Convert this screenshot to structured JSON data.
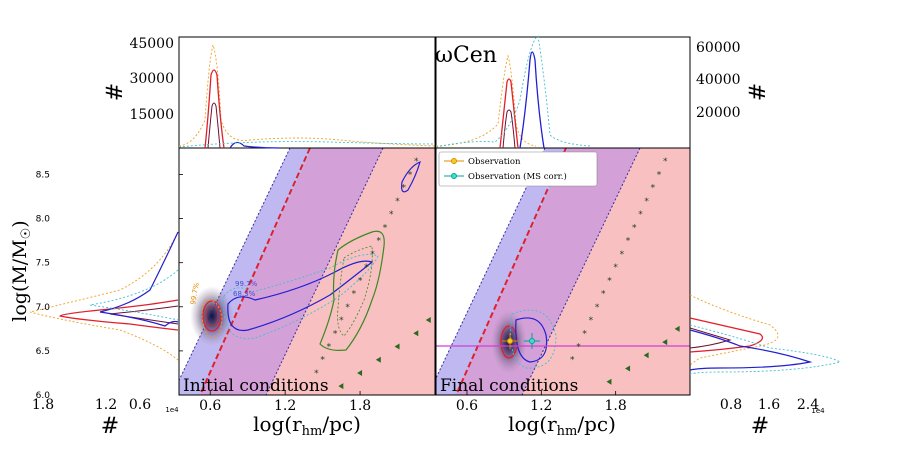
{
  "chart_data": [
    {
      "type": "scatter",
      "panel": "left",
      "annotation": "Initial conditions",
      "xlabel": "log(r_hm/pc)",
      "ylabel": "log(M/M_☉)",
      "xlim": [
        0.35,
        2.4
      ],
      "ylim": [
        6.0,
        8.8
      ],
      "xticks": [
        "0.6",
        "1.2",
        "1.8"
      ],
      "yticks": [
        "6.0",
        "6.5",
        "7.0",
        "7.5",
        "8.0",
        "8.5"
      ],
      "contour_labels": [
        "99.7%",
        "68.3%",
        "99.7%",
        "68.3%"
      ],
      "ms_limit_stars": [
        [
          1.45,
          6.25
        ],
        [
          1.5,
          6.4
        ],
        [
          1.55,
          6.55
        ],
        [
          1.6,
          6.7
        ],
        [
          1.65,
          6.85
        ],
        [
          1.7,
          7.0
        ],
        [
          1.75,
          7.15
        ],
        [
          1.8,
          7.3
        ],
        [
          1.85,
          7.45
        ],
        [
          1.9,
          7.6
        ],
        [
          1.95,
          7.75
        ],
        [
          2.0,
          7.9
        ],
        [
          2.05,
          8.05
        ],
        [
          2.1,
          8.2
        ],
        [
          2.15,
          8.35
        ],
        [
          2.2,
          8.5
        ],
        [
          2.25,
          8.65
        ]
      ],
      "triangles": [
        [
          1.65,
          6.1
        ],
        [
          1.8,
          6.25
        ],
        [
          1.95,
          6.4
        ],
        [
          2.1,
          6.55
        ],
        [
          2.25,
          6.7
        ],
        [
          2.35,
          6.85
        ]
      ]
    },
    {
      "type": "scatter",
      "panel": "right",
      "annotation": "Final conditions",
      "xlabel": "log(r_hm/pc)",
      "xlim": [
        0.35,
        2.4
      ],
      "ylim": [
        6.0,
        8.8
      ],
      "xticks": [
        "0.6",
        "1.2",
        "1.8"
      ],
      "legend": [
        "Observation",
        "Observation (MS corr.)"
      ],
      "legend_position": "top-left",
      "series": [
        {
          "name": "Observation",
          "color": "#e08a00",
          "x": [
            1.0
          ],
          "y": [
            6.6
          ]
        },
        {
          "name": "Observation (MS corr.)",
          "color": "#00a0a0",
          "x": [
            1.15
          ],
          "y": [
            6.6
          ]
        }
      ],
      "hline_y": 6.56,
      "ms_limit_stars": [
        [
          1.45,
          6.4
        ],
        [
          1.5,
          6.55
        ],
        [
          1.55,
          6.7
        ],
        [
          1.6,
          6.85
        ],
        [
          1.65,
          7.0
        ],
        [
          1.7,
          7.15
        ],
        [
          1.75,
          7.3
        ],
        [
          1.8,
          7.45
        ],
        [
          1.85,
          7.6
        ],
        [
          1.9,
          7.75
        ],
        [
          1.95,
          7.9
        ],
        [
          2.0,
          8.05
        ],
        [
          2.05,
          8.2
        ],
        [
          2.1,
          8.35
        ],
        [
          2.15,
          8.5
        ],
        [
          2.2,
          8.65
        ]
      ],
      "triangles": [
        [
          1.75,
          6.15
        ],
        [
          1.9,
          6.3
        ],
        [
          2.05,
          6.45
        ],
        [
          2.2,
          6.6
        ],
        [
          2.3,
          6.75
        ]
      ]
    }
  ],
  "title": "ωCen",
  "top_left_hist": {
    "ylabel": "#",
    "yticks": [
      "15000",
      "30000",
      "45000"
    ]
  },
  "top_right_hist": {
    "ylabel": "#",
    "yticks": [
      "20000",
      "40000",
      "60000"
    ]
  },
  "left_hist": {
    "xlabel": "#",
    "xticks": [
      "1.8",
      "1.2",
      "0.6"
    ],
    "exponent": "1e4"
  },
  "right_hist": {
    "xlabel": "#",
    "xticks": [
      "0.8",
      "1.6",
      "2.4"
    ],
    "exponent": "1e4"
  },
  "colors": {
    "red": "#e0202a",
    "blue": "#2020d0",
    "orange": "#f0a020",
    "cyan": "#40c0d0",
    "green": "#3a8a20",
    "band_blue": "#b8b8f0",
    "band_pink": "#f8c0c0",
    "band_purple": "#d0a0d8"
  }
}
